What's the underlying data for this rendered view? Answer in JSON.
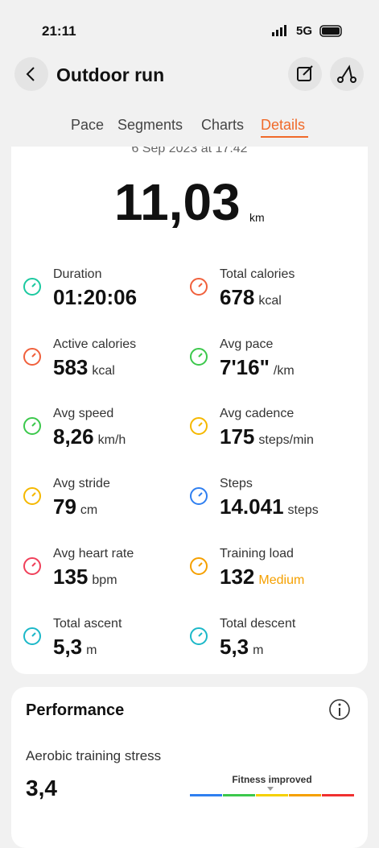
{
  "status": {
    "time": "21:11",
    "network": "5G"
  },
  "header": {
    "title": "Outdoor run"
  },
  "tabs": {
    "items": [
      "Pace",
      "Segments",
      "Charts",
      "Details"
    ],
    "active": 3
  },
  "summary": {
    "date": "6 Sep 2023 at 17:42",
    "distance": "11,03",
    "unit": "km"
  },
  "metrics": [
    {
      "label": "Duration",
      "value": "01:20:06",
      "unit": "",
      "color": "#1cc9a0"
    },
    {
      "label": "Total calories",
      "value": "678",
      "unit": "kcal",
      "color": "#f0603c"
    },
    {
      "label": "Active calories",
      "value": "583",
      "unit": "kcal",
      "color": "#f0603c"
    },
    {
      "label": "Avg pace",
      "value": "7'16\"",
      "unit": "/km",
      "color": "#3cc84c"
    },
    {
      "label": "Avg speed",
      "value": "8,26",
      "unit": "km/h",
      "color": "#3cc84c"
    },
    {
      "label": "Avg cadence",
      "value": "175",
      "unit": "steps/min",
      "color": "#f5b800"
    },
    {
      "label": "Avg stride",
      "value": "79",
      "unit": "cm",
      "color": "#f5b800"
    },
    {
      "label": "Steps",
      "value": "14.041",
      "unit": "steps",
      "color": "#2f7ff0"
    },
    {
      "label": "Avg heart rate",
      "value": "135",
      "unit": "bpm",
      "color": "#f0405a"
    },
    {
      "label": "Training load",
      "value": "132",
      "unit": "Medium",
      "color": "#f5a000"
    },
    {
      "label": "Total ascent",
      "value": "5,3",
      "unit": "m",
      "color": "#1cb8c8"
    },
    {
      "label": "Total descent",
      "value": "5,3",
      "unit": "m",
      "color": "#1cb8c8"
    }
  ],
  "performance": {
    "title": "Performance",
    "metric": "Aerobic training stress",
    "value": "3,4",
    "status": "Fitness improved"
  }
}
